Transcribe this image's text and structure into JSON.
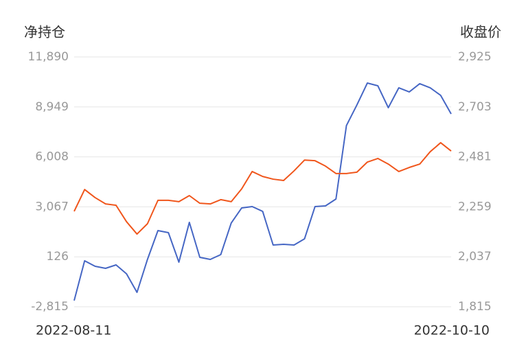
{
  "chart_data": {
    "type": "line",
    "y_label": "净持仓",
    "y2_label": "收盘价",
    "categories": [
      "2022-08-11",
      null,
      null,
      null,
      null,
      null,
      null,
      null,
      null,
      null,
      null,
      null,
      null,
      null,
      null,
      null,
      null,
      null,
      null,
      null,
      null,
      null,
      null,
      null,
      null,
      null,
      null,
      null,
      null,
      null,
      null,
      null,
      null,
      null,
      null,
      null,
      "2022-10-10"
    ],
    "ylim": [
      -2815,
      11890
    ],
    "yticks": [
      {
        "value": -2815,
        "label": "-2,815"
      },
      126,
      {
        "value": 3067,
        "label": "3,067"
      },
      {
        "value": 6008,
        "label": "6,008"
      },
      {
        "value": 8949,
        "label": "8,949"
      },
      {
        "value": 11890,
        "label": "11,890"
      }
    ],
    "y2lim": [
      1815,
      2925
    ],
    "y2ticks": [
      {
        "value": 1815,
        "label": "1,815"
      },
      {
        "value": 2037,
        "label": "2,037"
      },
      {
        "value": 2259,
        "label": "2,259"
      },
      {
        "value": 2481,
        "label": "2,481"
      },
      {
        "value": 2703,
        "label": "2,703"
      },
      {
        "value": 2925,
        "label": "2,925"
      }
    ],
    "grid": true,
    "series": [
      {
        "color": "#4566c4",
        "values": [
          -2451,
          -108,
          -432,
          -553,
          -351,
          -876,
          -1967,
          -27,
          1669,
          1548,
          -189,
          2154,
          94,
          -27,
          256,
          2114,
          3003,
          3083,
          2801,
          821,
          861,
          821,
          1185,
          3083,
          3124,
          3528,
          7851,
          9063,
          10356,
          10194,
          8902,
          10073,
          9831,
          10316,
          10073,
          9629,
          8538
        ]
      },
      {
        "color": "#f0561c",
        "axis": "y2",
        "values": [
          2239,
          2336,
          2300,
          2272,
          2266,
          2193,
          2138,
          2184,
          2288,
          2288,
          2282,
          2309,
          2275,
          2272,
          2291,
          2282,
          2339,
          2416,
          2394,
          2382,
          2376,
          2419,
          2467,
          2464,
          2440,
          2407,
          2407,
          2413,
          2458,
          2474,
          2449,
          2416,
          2434,
          2449,
          2504,
          2544,
          2507
        ]
      }
    ]
  }
}
